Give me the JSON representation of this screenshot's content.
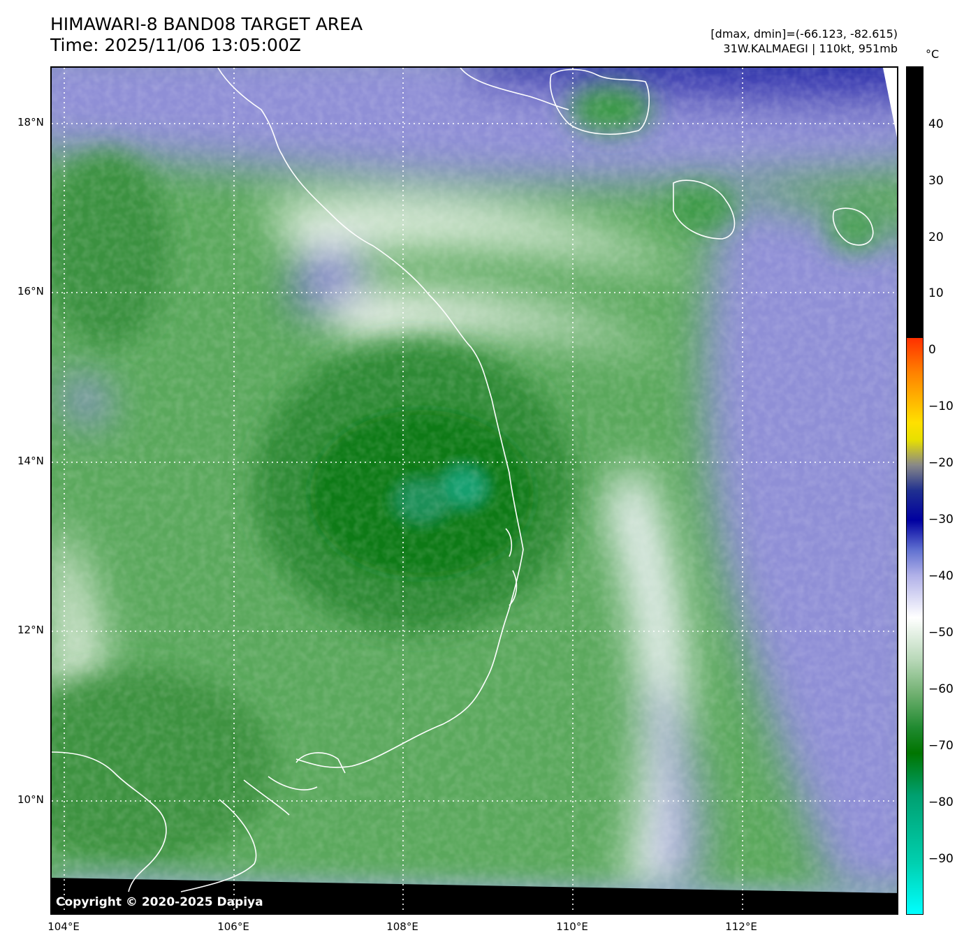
{
  "header": {
    "title_line1": "HIMAWARI-8 BAND08 TARGET AREA",
    "title_line2": "Time: 2025/11/06 13:05:00Z",
    "range_text": "[dmax, dmin]=(-66.123, -82.615)",
    "storm_text": "31W.KALMAEGI | 110kt, 951mb"
  },
  "map": {
    "copyright": "Copyright © 2020-2025 Dapiya",
    "lat_labels": [
      "18°N",
      "16°N",
      "14°N",
      "12°N",
      "10°N"
    ],
    "lon_labels": [
      "104°E",
      "106°E",
      "108°E",
      "110°E",
      "112°E"
    ]
  },
  "colorbar": {
    "unit": "°C",
    "ticks": [
      "40",
      "30",
      "20",
      "10",
      "0",
      "−10",
      "−20",
      "−30",
      "−40",
      "−50",
      "−60",
      "−70",
      "−80",
      "−90"
    ]
  },
  "colors": {
    "cold_green": "#007500",
    "cyan_core": "#00a070",
    "mid_green": "#60a860",
    "white": "#ffffff",
    "lavender": "#8f8fd6",
    "deep_blue": "#1a1aa0"
  }
}
